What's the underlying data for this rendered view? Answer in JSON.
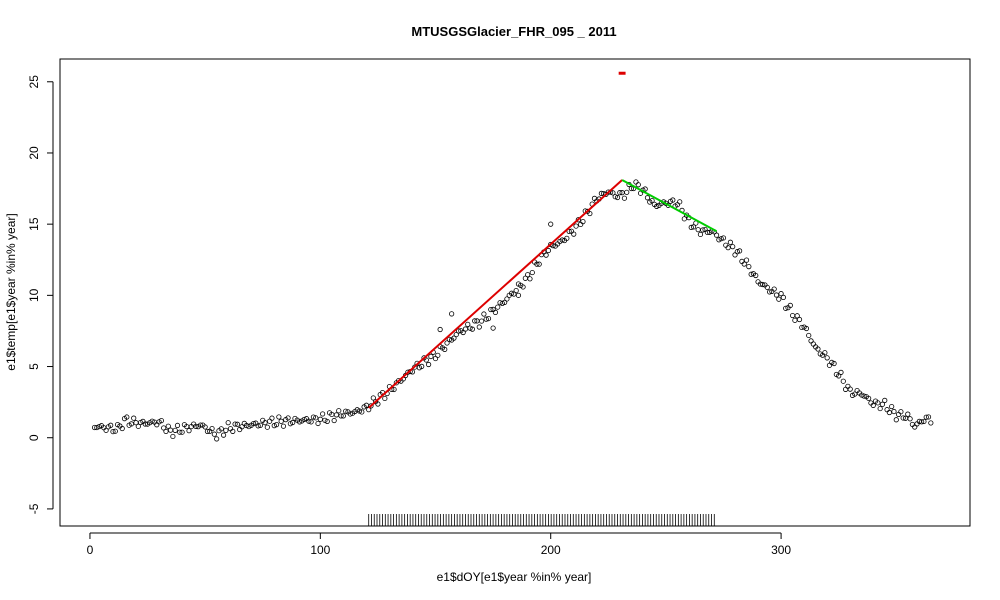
{
  "chart_data": {
    "type": "scatter",
    "title": "MTUSGSGlacier_FHR_095 _ 2011",
    "xlabel": "e1$dOY[e1$year %in% year]",
    "ylabel": "e1$temp[e1$year %in% year]",
    "xlim": [
      -13,
      382
    ],
    "ylim": [
      -6.2,
      26.6
    ],
    "xticks": [
      0,
      100,
      200,
      300
    ],
    "yticks": [
      -5,
      0,
      5,
      10,
      15,
      20,
      25
    ],
    "grid": false,
    "legend": "none",
    "points_knots": [
      [
        2,
        0.8
      ],
      [
        12,
        0.6
      ],
      [
        15,
        1.2
      ],
      [
        22,
        1.0
      ],
      [
        30,
        1.1
      ],
      [
        35,
        0.4
      ],
      [
        42,
        0.7
      ],
      [
        48,
        0.9
      ],
      [
        55,
        0.2
      ],
      [
        60,
        0.7
      ],
      [
        70,
        0.9
      ],
      [
        80,
        1.1
      ],
      [
        90,
        1.2
      ],
      [
        100,
        1.3
      ],
      [
        105,
        1.5
      ],
      [
        110,
        1.7
      ],
      [
        115,
        1.8
      ],
      [
        120,
        2.1
      ],
      [
        130,
        3.3
      ],
      [
        140,
        4.8
      ],
      [
        150,
        5.8
      ],
      [
        155,
        6.6
      ],
      [
        160,
        7.4
      ],
      [
        165,
        7.8
      ],
      [
        170,
        8.2
      ],
      [
        180,
        9.6
      ],
      [
        190,
        11.2
      ],
      [
        195,
        12.5
      ],
      [
        200,
        13.4
      ],
      [
        205,
        13.8
      ],
      [
        210,
        14.6
      ],
      [
        215,
        15.6
      ],
      [
        220,
        16.8
      ],
      [
        225,
        17.3
      ],
      [
        228,
        17.0
      ],
      [
        232,
        17.1
      ],
      [
        236,
        17.8
      ],
      [
        240,
        17.4
      ],
      [
        245,
        16.3
      ],
      [
        250,
        16.5
      ],
      [
        255,
        16.5
      ],
      [
        260,
        15.2
      ],
      [
        265,
        14.5
      ],
      [
        270,
        14.5
      ],
      [
        275,
        13.8
      ],
      [
        280,
        13.2
      ],
      [
        285,
        12.2
      ],
      [
        290,
        11.0
      ],
      [
        295,
        10.4
      ],
      [
        300,
        9.9
      ],
      [
        305,
        8.7
      ],
      [
        310,
        7.8
      ],
      [
        315,
        6.3
      ],
      [
        320,
        5.6
      ],
      [
        325,
        4.5
      ],
      [
        330,
        3.2
      ],
      [
        335,
        3.1
      ],
      [
        340,
        2.4
      ],
      [
        345,
        2.3
      ],
      [
        350,
        1.6
      ],
      [
        355,
        1.5
      ],
      [
        358,
        0.8
      ],
      [
        362,
        1.3
      ],
      [
        365,
        1.3
      ]
    ],
    "outliers": [
      [
        157,
        8.7
      ],
      [
        200,
        15.0
      ],
      [
        152,
        7.6
      ],
      [
        175,
        7.7
      ],
      [
        186,
        10.0
      ]
    ],
    "fit_segments": [
      {
        "color": "#dd0000",
        "x": [
          121,
          231
        ],
        "y": [
          2.1,
          18.1
        ]
      },
      {
        "color": "#00cc00",
        "x": [
          231,
          272
        ],
        "y": [
          18.1,
          14.5
        ]
      }
    ],
    "breakpoint_marker": {
      "color": "#dd0000",
      "x": [
        229.5,
        232.5
      ],
      "y": 25.6
    },
    "rug": {
      "from": 121,
      "to": 272,
      "step": 1.2
    },
    "point_color": "#000000"
  }
}
